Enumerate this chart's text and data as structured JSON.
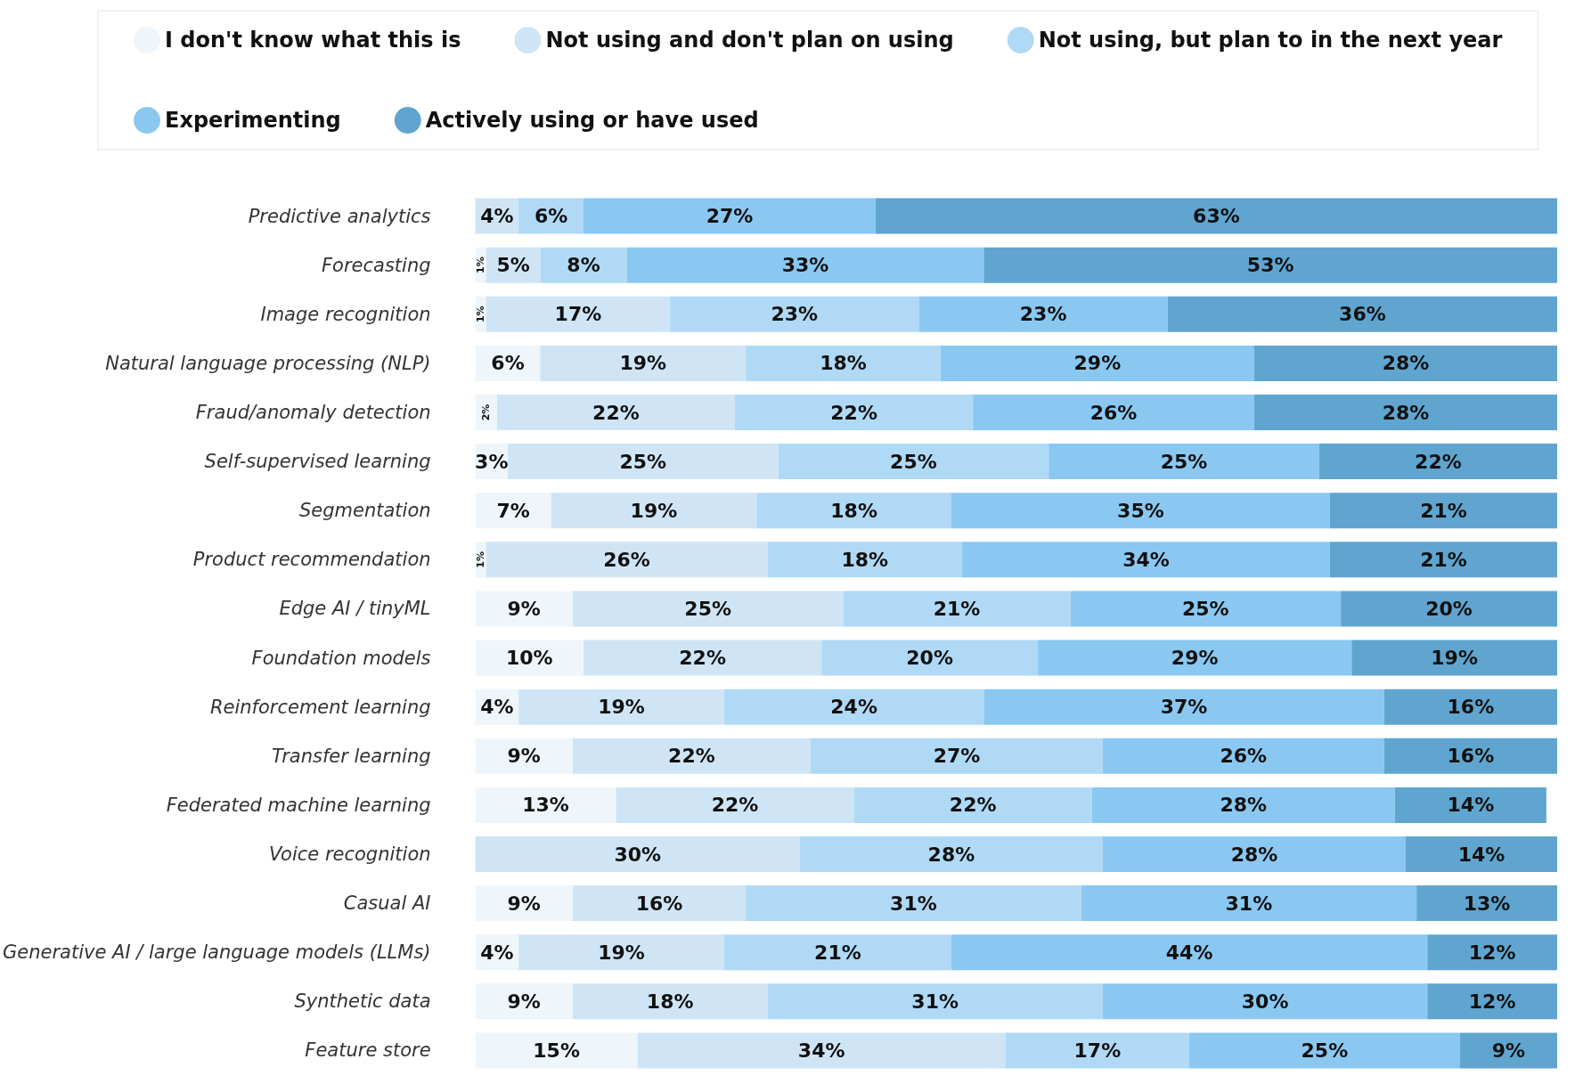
{
  "chart_data": {
    "type": "bar",
    "orientation": "horizontal",
    "stacked": true,
    "legend": "top",
    "categories": [
      "Predictive analytics",
      "Forecasting",
      "Image recognition",
      "Natural language processing (NLP)",
      "Fraud/anomaly detection",
      "Self-supervised learning",
      "Segmentation",
      "Product recommendation",
      "Edge AI / tinyML",
      "Foundation models",
      "Reinforcement learning",
      "Transfer learning",
      "Federated machine learning",
      "Voice recognition",
      "Casual AI",
      "Generative AI / large language models (LLMs)",
      "Synthetic data",
      "Feature store"
    ],
    "series": [
      {
        "name": "I don't know what this is",
        "color": "#eef6fb",
        "values": [
          null,
          1,
          1,
          6,
          2,
          3,
          7,
          1,
          9,
          10,
          4,
          9,
          13,
          null,
          9,
          4,
          9,
          15
        ],
        "value_labels": [
          null,
          "1%",
          "1%",
          "6%",
          "2%",
          "3%",
          "7%",
          "1%",
          "9%",
          "10%",
          "4%",
          "9%",
          "13%",
          null,
          "9%",
          "4%",
          "9%",
          "15%"
        ]
      },
      {
        "name": "Not using and don't plan on using",
        "color": "#cfe5f6",
        "values": [
          4,
          5,
          17,
          19,
          22,
          25,
          19,
          26,
          25,
          22,
          19,
          22,
          22,
          30,
          16,
          19,
          18,
          34
        ],
        "value_labels": [
          "4%",
          "5%",
          "17%",
          "19%",
          "22%",
          "25%",
          "19%",
          "26%",
          "25%",
          "22%",
          "19%",
          "22%",
          "22%",
          "30%",
          "16%",
          "19%",
          "18%",
          "34%"
        ]
      },
      {
        "name": "Not using, but plan to in the next year",
        "color": "#b0d9f6",
        "values": [
          6,
          8,
          23,
          18,
          22,
          25,
          18,
          18,
          21,
          20,
          24,
          27,
          22,
          28,
          31,
          21,
          31,
          17
        ],
        "value_labels": [
          "6%",
          "8%",
          "23%",
          "18%",
          "22%",
          "25%",
          "18%",
          "18%",
          "21%",
          "20%",
          "24%",
          "27%",
          "22%",
          "28%",
          "31%",
          "21%",
          "31%",
          "17%"
        ]
      },
      {
        "name": "Experimenting",
        "color": "#8ac8f2",
        "values": [
          27,
          33,
          23,
          29,
          26,
          25,
          35,
          34,
          25,
          29,
          37,
          26,
          28,
          28,
          31,
          44,
          30,
          25
        ],
        "value_labels": [
          "27%",
          "33%",
          "23%",
          "29%",
          "26%",
          "25%",
          "35%",
          "34%",
          "25%",
          "29%",
          "37%",
          "26%",
          "28%",
          "28%",
          "31%",
          "44%",
          "30%",
          "25%"
        ]
      },
      {
        "name": "Actively using or have used",
        "color": "#5fa5cf",
        "values": [
          63,
          53,
          36,
          28,
          28,
          22,
          21,
          21,
          20,
          19,
          16,
          16,
          14,
          14,
          13,
          12,
          12,
          9
        ],
        "value_labels": [
          "63%",
          "53%",
          "36%",
          "28%",
          "28%",
          "22%",
          "21%",
          "21%",
          "20%",
          "19%",
          "16%",
          "16%",
          "14%",
          "14%",
          "13%",
          "12%",
          "12%",
          "9%"
        ]
      }
    ]
  }
}
